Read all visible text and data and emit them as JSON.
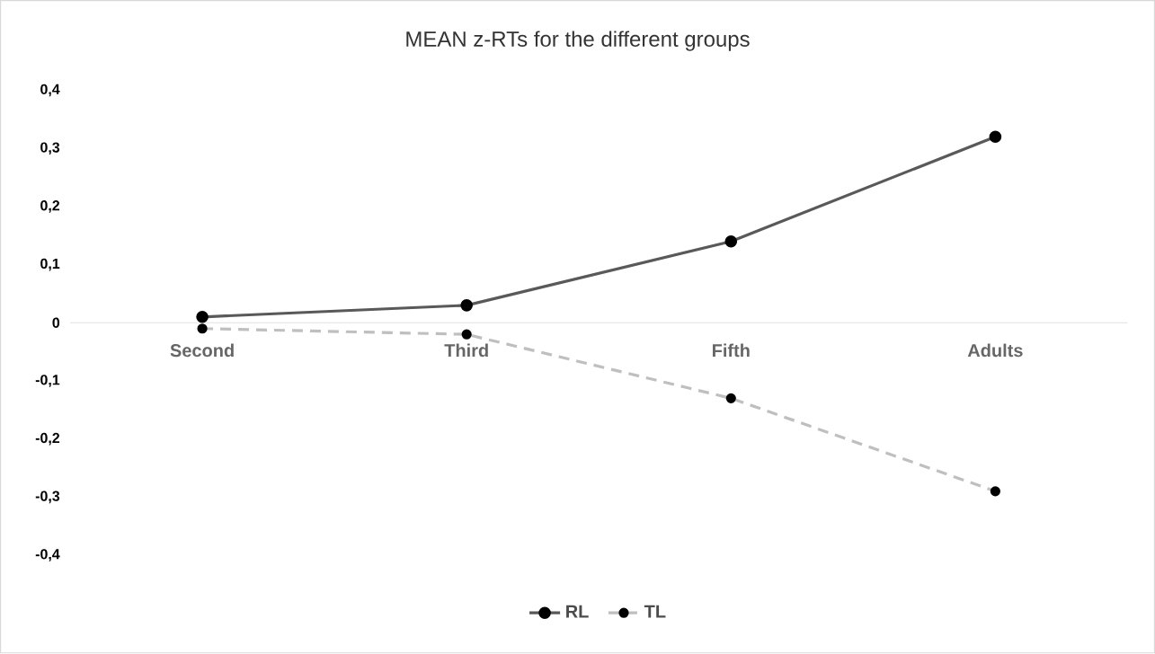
{
  "chart_data": {
    "type": "line",
    "title": "MEAN z-RTs for the different groups",
    "categories": [
      "Second",
      "Third",
      "Fifth",
      "Adults"
    ],
    "series": [
      {
        "name": "RL",
        "color": "#595959",
        "line_style": "solid",
        "values": [
          0.01,
          0.03,
          0.14,
          0.32
        ]
      },
      {
        "name": "TL",
        "color": "#bfbfbf",
        "line_style": "dashed",
        "values": [
          -0.01,
          -0.02,
          -0.13,
          -0.29
        ]
      }
    ],
    "ylim": [
      -0.4,
      0.4
    ],
    "yticks": [
      {
        "value": -0.4,
        "label": "-0,4"
      },
      {
        "value": -0.3,
        "label": "-0,3"
      },
      {
        "value": -0.2,
        "label": "-0,2"
      },
      {
        "value": -0.1,
        "label": "-0,1"
      },
      0,
      {
        "value": 0.1,
        "label": "0,1"
      },
      {
        "value": 0.2,
        "label": "0,2"
      },
      {
        "value": 0.3,
        "label": "0,3"
      },
      {
        "value": 0.4,
        "label": "0,4"
      }
    ],
    "grid": false,
    "legend": "bottom",
    "marker": "circle"
  }
}
